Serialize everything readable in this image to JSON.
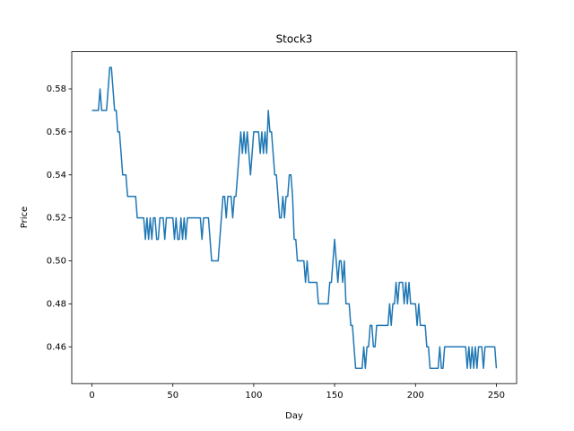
{
  "chart_data": {
    "type": "line",
    "title": "Stock3",
    "x_label": "Day",
    "y_label": "Price",
    "x": [
      0,
      1,
      2,
      3,
      4,
      5,
      6,
      7,
      8,
      9,
      10,
      11,
      12,
      13,
      14,
      15,
      16,
      17,
      18,
      19,
      20,
      21,
      22,
      23,
      24,
      25,
      26,
      27,
      28,
      29,
      30,
      31,
      32,
      33,
      34,
      35,
      36,
      37,
      38,
      39,
      40,
      41,
      42,
      43,
      44,
      45,
      46,
      47,
      48,
      49,
      50,
      51,
      52,
      53,
      54,
      55,
      56,
      57,
      58,
      59,
      60,
      61,
      62,
      63,
      64,
      65,
      66,
      67,
      68,
      69,
      70,
      71,
      72,
      73,
      74,
      75,
      76,
      77,
      78,
      79,
      80,
      81,
      82,
      83,
      84,
      85,
      86,
      87,
      88,
      89,
      90,
      91,
      92,
      93,
      94,
      95,
      96,
      97,
      98,
      99,
      100,
      101,
      102,
      103,
      104,
      105,
      106,
      107,
      108,
      109,
      110,
      111,
      112,
      113,
      114,
      115,
      116,
      117,
      118,
      119,
      120,
      121,
      122,
      123,
      124,
      125,
      126,
      127,
      128,
      129,
      130,
      131,
      132,
      133,
      134,
      135,
      136,
      137,
      138,
      139,
      140,
      141,
      142,
      143,
      144,
      145,
      146,
      147,
      148,
      149,
      150,
      151,
      152,
      153,
      154,
      155,
      156,
      157,
      158,
      159,
      160,
      161,
      162,
      163,
      164,
      165,
      166,
      167,
      168,
      169,
      170,
      171,
      172,
      173,
      174,
      175,
      176,
      177,
      178,
      179,
      180,
      181,
      182,
      183,
      184,
      185,
      186,
      187,
      188,
      189,
      190,
      191,
      192,
      193,
      194,
      195,
      196,
      197,
      198,
      199,
      200,
      201,
      202,
      203,
      204,
      205,
      206,
      207,
      208,
      209,
      210,
      211,
      212,
      213,
      214,
      215,
      216,
      217,
      218,
      219,
      220,
      221,
      222,
      223,
      224,
      225,
      226,
      227,
      228,
      229,
      230,
      231,
      232,
      233,
      234,
      235,
      236,
      237,
      238,
      239,
      240,
      241,
      242,
      243,
      244,
      245,
      246,
      247,
      248,
      249,
      250
    ],
    "series": [
      {
        "name": "Stock3",
        "color": "#1f77b4",
        "values": [
          0.57,
          0.57,
          0.57,
          0.57,
          0.57,
          0.58,
          0.57,
          0.57,
          0.57,
          0.57,
          0.58,
          0.59,
          0.59,
          0.58,
          0.57,
          0.57,
          0.56,
          0.56,
          0.55,
          0.54,
          0.54,
          0.54,
          0.53,
          0.53,
          0.53,
          0.53,
          0.53,
          0.53,
          0.52,
          0.52,
          0.52,
          0.52,
          0.52,
          0.51,
          0.52,
          0.51,
          0.52,
          0.51,
          0.52,
          0.52,
          0.51,
          0.51,
          0.52,
          0.52,
          0.52,
          0.51,
          0.52,
          0.52,
          0.52,
          0.52,
          0.52,
          0.51,
          0.52,
          0.51,
          0.51,
          0.52,
          0.51,
          0.52,
          0.51,
          0.52,
          0.52,
          0.52,
          0.52,
          0.52,
          0.52,
          0.52,
          0.52,
          0.52,
          0.51,
          0.52,
          0.52,
          0.52,
          0.52,
          0.51,
          0.5,
          0.5,
          0.5,
          0.5,
          0.5,
          0.51,
          0.52,
          0.53,
          0.53,
          0.52,
          0.53,
          0.53,
          0.53,
          0.52,
          0.53,
          0.53,
          0.54,
          0.55,
          0.56,
          0.55,
          0.56,
          0.55,
          0.56,
          0.55,
          0.54,
          0.55,
          0.56,
          0.56,
          0.56,
          0.56,
          0.55,
          0.56,
          0.55,
          0.56,
          0.55,
          0.57,
          0.56,
          0.56,
          0.55,
          0.54,
          0.54,
          0.53,
          0.52,
          0.52,
          0.53,
          0.52,
          0.53,
          0.53,
          0.54,
          0.54,
          0.53,
          0.51,
          0.51,
          0.5,
          0.5,
          0.5,
          0.5,
          0.5,
          0.49,
          0.5,
          0.49,
          0.49,
          0.49,
          0.49,
          0.49,
          0.49,
          0.48,
          0.48,
          0.48,
          0.48,
          0.48,
          0.48,
          0.48,
          0.49,
          0.49,
          0.5,
          0.51,
          0.5,
          0.49,
          0.5,
          0.5,
          0.49,
          0.5,
          0.48,
          0.48,
          0.48,
          0.47,
          0.47,
          0.46,
          0.45,
          0.45,
          0.45,
          0.45,
          0.45,
          0.46,
          0.45,
          0.46,
          0.46,
          0.47,
          0.47,
          0.46,
          0.46,
          0.47,
          0.47,
          0.47,
          0.47,
          0.47,
          0.47,
          0.47,
          0.47,
          0.48,
          0.47,
          0.48,
          0.48,
          0.49,
          0.48,
          0.49,
          0.49,
          0.49,
          0.48,
          0.49,
          0.48,
          0.49,
          0.48,
          0.48,
          0.48,
          0.48,
          0.47,
          0.48,
          0.47,
          0.47,
          0.47,
          0.47,
          0.46,
          0.46,
          0.45,
          0.45,
          0.45,
          0.45,
          0.45,
          0.45,
          0.46,
          0.45,
          0.45,
          0.46,
          0.46,
          0.46,
          0.46,
          0.46,
          0.46,
          0.46,
          0.46,
          0.46,
          0.46,
          0.46,
          0.46,
          0.46,
          0.46,
          0.45,
          0.46,
          0.45,
          0.46,
          0.45,
          0.46,
          0.45,
          0.46,
          0.46,
          0.46,
          0.45,
          0.46,
          0.46,
          0.46,
          0.46,
          0.46,
          0.46,
          0.46,
          0.45
        ]
      }
    ],
    "xlim": [
      -12.5,
      262.5
    ],
    "xticks": [
      0,
      50,
      100,
      150,
      200,
      250
    ],
    "ylim": [
      0.4429,
      0.5973
    ],
    "yticks": [
      0.46,
      0.48,
      {
        "value": 0.5,
        "label": "0.50"
      },
      0.52,
      0.54,
      0.56,
      0.58
    ]
  }
}
